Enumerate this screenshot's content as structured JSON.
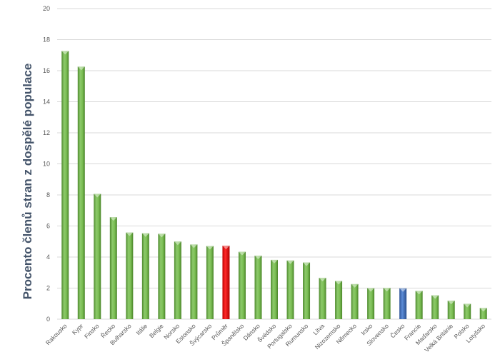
{
  "chart_data": {
    "type": "bar",
    "title": "",
    "xlabel": "",
    "ylabel": "Procento členů stran z dospělé populace",
    "ylim": [
      0,
      20
    ],
    "yticks": [
      0,
      2,
      4,
      6,
      8,
      10,
      12,
      14,
      16,
      18,
      20
    ],
    "grid": true,
    "categories": [
      "Rakousko",
      "Kypr",
      "Finsko",
      "Řecko",
      "Bulharsko",
      "Itálie",
      "Belgie",
      "Norsko",
      "Estonsko",
      "Švýcarsko",
      "Průměr",
      "Španělsko",
      "Dánsko",
      "Švédsko",
      "Portugalsko",
      "Rumunsko",
      "Litva",
      "Nizozemsko",
      "Německo",
      "Irsko",
      "Slovensko",
      "Česko",
      "Francie",
      "Maďarsko",
      "Velká Británie",
      "Polsko",
      "Lotyšsko"
    ],
    "values": [
      17.27,
      16.26,
      8.07,
      6.57,
      5.58,
      5.53,
      5.5,
      5.0,
      4.81,
      4.71,
      4.73,
      4.34,
      4.09,
      3.82,
      3.78,
      3.65,
      2.66,
      2.46,
      2.26,
      2.0,
      2.01,
      1.99,
      1.82,
      1.54,
      1.19,
      0.99,
      0.72
    ],
    "highlight_colors": {
      "default": "#70ad47",
      "Průměr": "#ff0000",
      "Česko": "#4472c4"
    }
  }
}
